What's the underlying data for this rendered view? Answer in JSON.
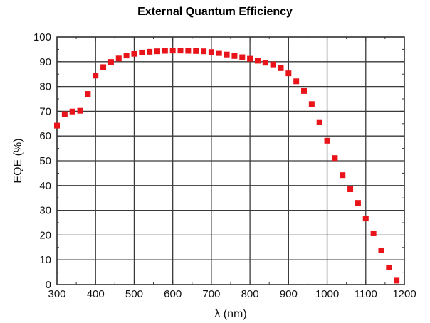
{
  "chart_data": {
    "type": "scatter",
    "title": "External Quantum Efficiency",
    "xlabel": "λ (nm)",
    "ylabel": "EQE (%)",
    "xlim": [
      300,
      1200
    ],
    "ylim": [
      0,
      100
    ],
    "xticks": [
      300,
      400,
      500,
      600,
      700,
      800,
      900,
      1000,
      1100,
      1200
    ],
    "yticks": [
      0,
      10,
      20,
      30,
      40,
      50,
      60,
      70,
      80,
      90,
      100
    ],
    "grid": true,
    "marker_color": "#e8141a",
    "series": [
      {
        "x": [
          300,
          320,
          340,
          360,
          380,
          400,
          420,
          440,
          460,
          480,
          500,
          520,
          540,
          560,
          580,
          600,
          620,
          640,
          660,
          680,
          700,
          720,
          740,
          760,
          780,
          800,
          820,
          840,
          860,
          880,
          900,
          920,
          940,
          960,
          980,
          1000,
          1020,
          1040,
          1060,
          1080,
          1100,
          1120,
          1140,
          1160,
          1180
        ],
        "y": [
          64.2,
          68.8,
          69.9,
          70.2,
          77.0,
          84.4,
          87.8,
          89.9,
          91.3,
          92.5,
          93.2,
          93.7,
          94.0,
          94.2,
          94.4,
          94.5,
          94.5,
          94.4,
          94.3,
          94.2,
          93.9,
          93.5,
          92.9,
          92.3,
          91.8,
          91.2,
          90.4,
          89.6,
          88.9,
          87.4,
          85.3,
          82.1,
          78.2,
          72.9,
          65.6,
          58.1,
          51.1,
          44.2,
          38.5,
          33.0,
          26.7,
          20.7,
          13.8,
          6.9,
          1.6
        ]
      }
    ]
  }
}
